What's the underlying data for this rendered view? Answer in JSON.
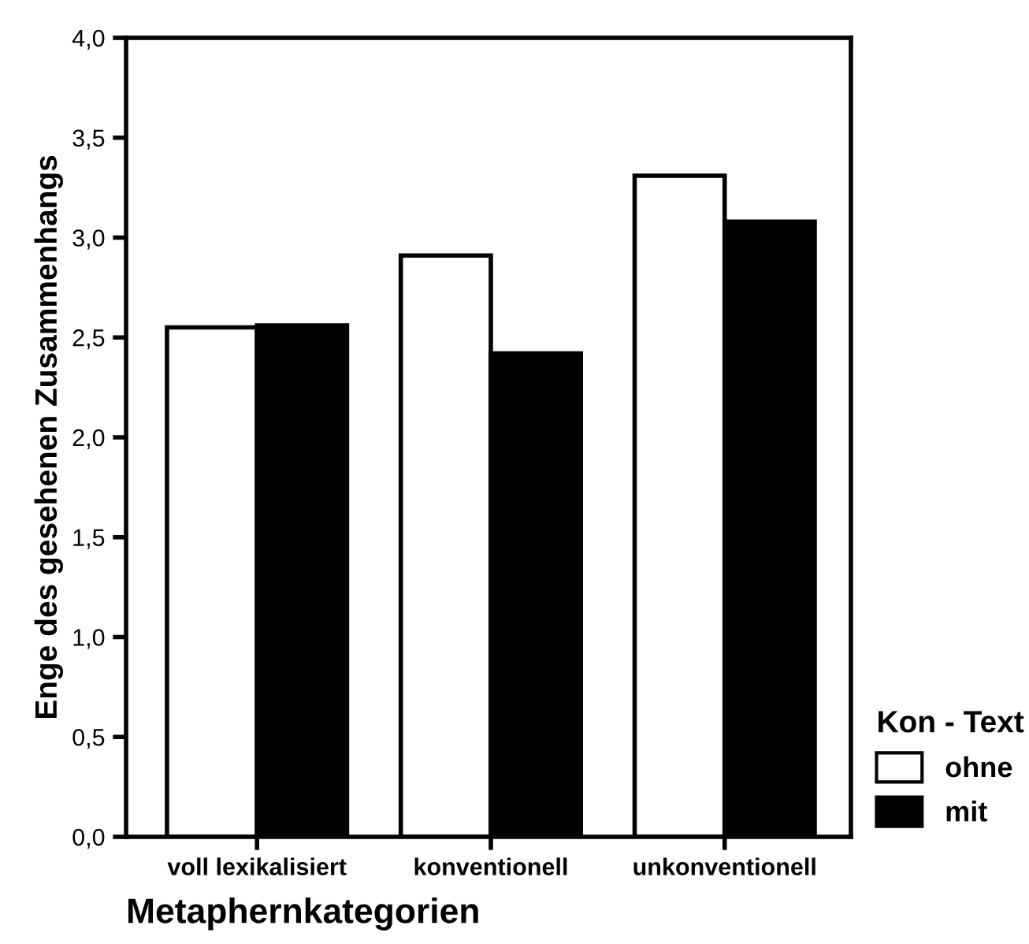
{
  "chart_data": {
    "type": "bar",
    "xlabel": "Metaphernkategorien",
    "ylabel": "Enge des gesehenen Zusammenhangs",
    "legend_title": "Kon - Text",
    "categories": [
      "voll lexikalisiert",
      "konventionell",
      "unkonventionell"
    ],
    "series": [
      {
        "name": "ohne",
        "color": "#ffffff",
        "values": [
          2.55,
          2.91,
          3.31
        ]
      },
      {
        "name": "mit",
        "color": "#000000",
        "values": [
          2.56,
          2.42,
          3.08
        ]
      }
    ],
    "ylim": [
      0,
      4
    ],
    "yticks": [
      {
        "value": 0,
        "label": "0,0"
      },
      {
        "value": 0.5,
        "label": "0,5"
      },
      {
        "value": 1,
        "label": "1,0"
      },
      {
        "value": 1.5,
        "label": "1,5"
      },
      {
        "value": 2,
        "label": "2,0"
      },
      {
        "value": 2.5,
        "label": "2,5"
      },
      {
        "value": 3,
        "label": "3,0"
      },
      {
        "value": 3.5,
        "label": "3,5"
      },
      {
        "value": 4,
        "label": "4,0"
      }
    ],
    "grid": false,
    "legend": "bottom right"
  }
}
